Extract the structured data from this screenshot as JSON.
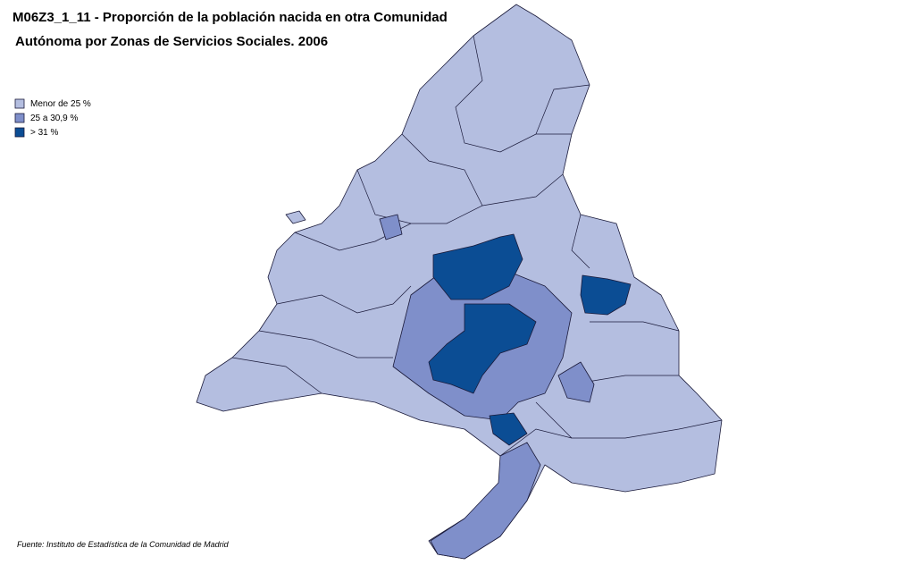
{
  "header": {
    "title_line_1": "M06Z3_1_11 - Proporción de la población nacida en otra Comunidad",
    "title_line_2": "Autónoma por Zonas de Servicios Sociales. 2006"
  },
  "legend": {
    "items": [
      {
        "label": "Menor de 25 %",
        "color": "#b4bee0"
      },
      {
        "label": "25 a 30,9 %",
        "color": "#7f8fca"
      },
      {
        "label": "> 31 %",
        "color": "#0b4d94"
      }
    ]
  },
  "source": "Fuente: Instituto de Estadística de la Comunidad de Madrid"
}
